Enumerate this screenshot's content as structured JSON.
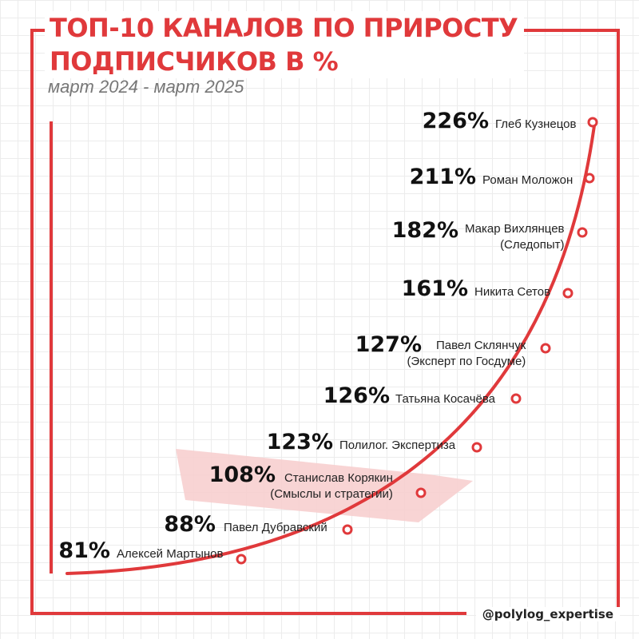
{
  "title_line1": "ТОП-10 КАНАЛОВ ПО ПРИРОСТУ",
  "title_line2": "ПОДПИСЧИКОВ В %",
  "subtitle": "март 2024 - март 2025",
  "handle": "@polylog_expertise",
  "colors": {
    "accent": "#e0393b",
    "highlight": "#f7cfcf",
    "text": "#111111"
  },
  "chart_data": {
    "type": "line",
    "title": "ТОП-10 КАНАЛОВ ПО ПРИРОСТУ ПОДПИСЧИКОВ В %",
    "subtitle": "март 2024 - март 2025",
    "grid": true,
    "highlighted_index": 7,
    "points": [
      {
        "label": "226%",
        "value": 226,
        "name_lines": [
          "Глеб Кузнецов"
        ]
      },
      {
        "label": "211%",
        "value": 211,
        "name_lines": [
          "Роман Моложон"
        ]
      },
      {
        "label": "182%",
        "value": 182,
        "name_lines": [
          "Макар Вихлянцев",
          "(Следопыт)"
        ]
      },
      {
        "label": "161%",
        "value": 161,
        "name_lines": [
          "Никита Сетов"
        ]
      },
      {
        "label": "127%",
        "value": 127,
        "name_lines": [
          "Павел Склянчук",
          "(Эксперт по Госдуме)"
        ]
      },
      {
        "label": "126%",
        "value": 126,
        "name_lines": [
          "Татьяна Косачёва"
        ]
      },
      {
        "label": "123%",
        "value": 123,
        "name_lines": [
          "Полилог. Экспертиза"
        ]
      },
      {
        "label": "108%",
        "value": 108,
        "name_lines": [
          "Станислав Корякин",
          "(Смыслы и стратегии)"
        ]
      },
      {
        "label": "88%",
        "value": 88,
        "name_lines": [
          "Павел Дубравский"
        ]
      },
      {
        "label": "81%",
        "value": 81,
        "name_lines": [
          "Алексей Мартынов"
        ]
      }
    ]
  }
}
